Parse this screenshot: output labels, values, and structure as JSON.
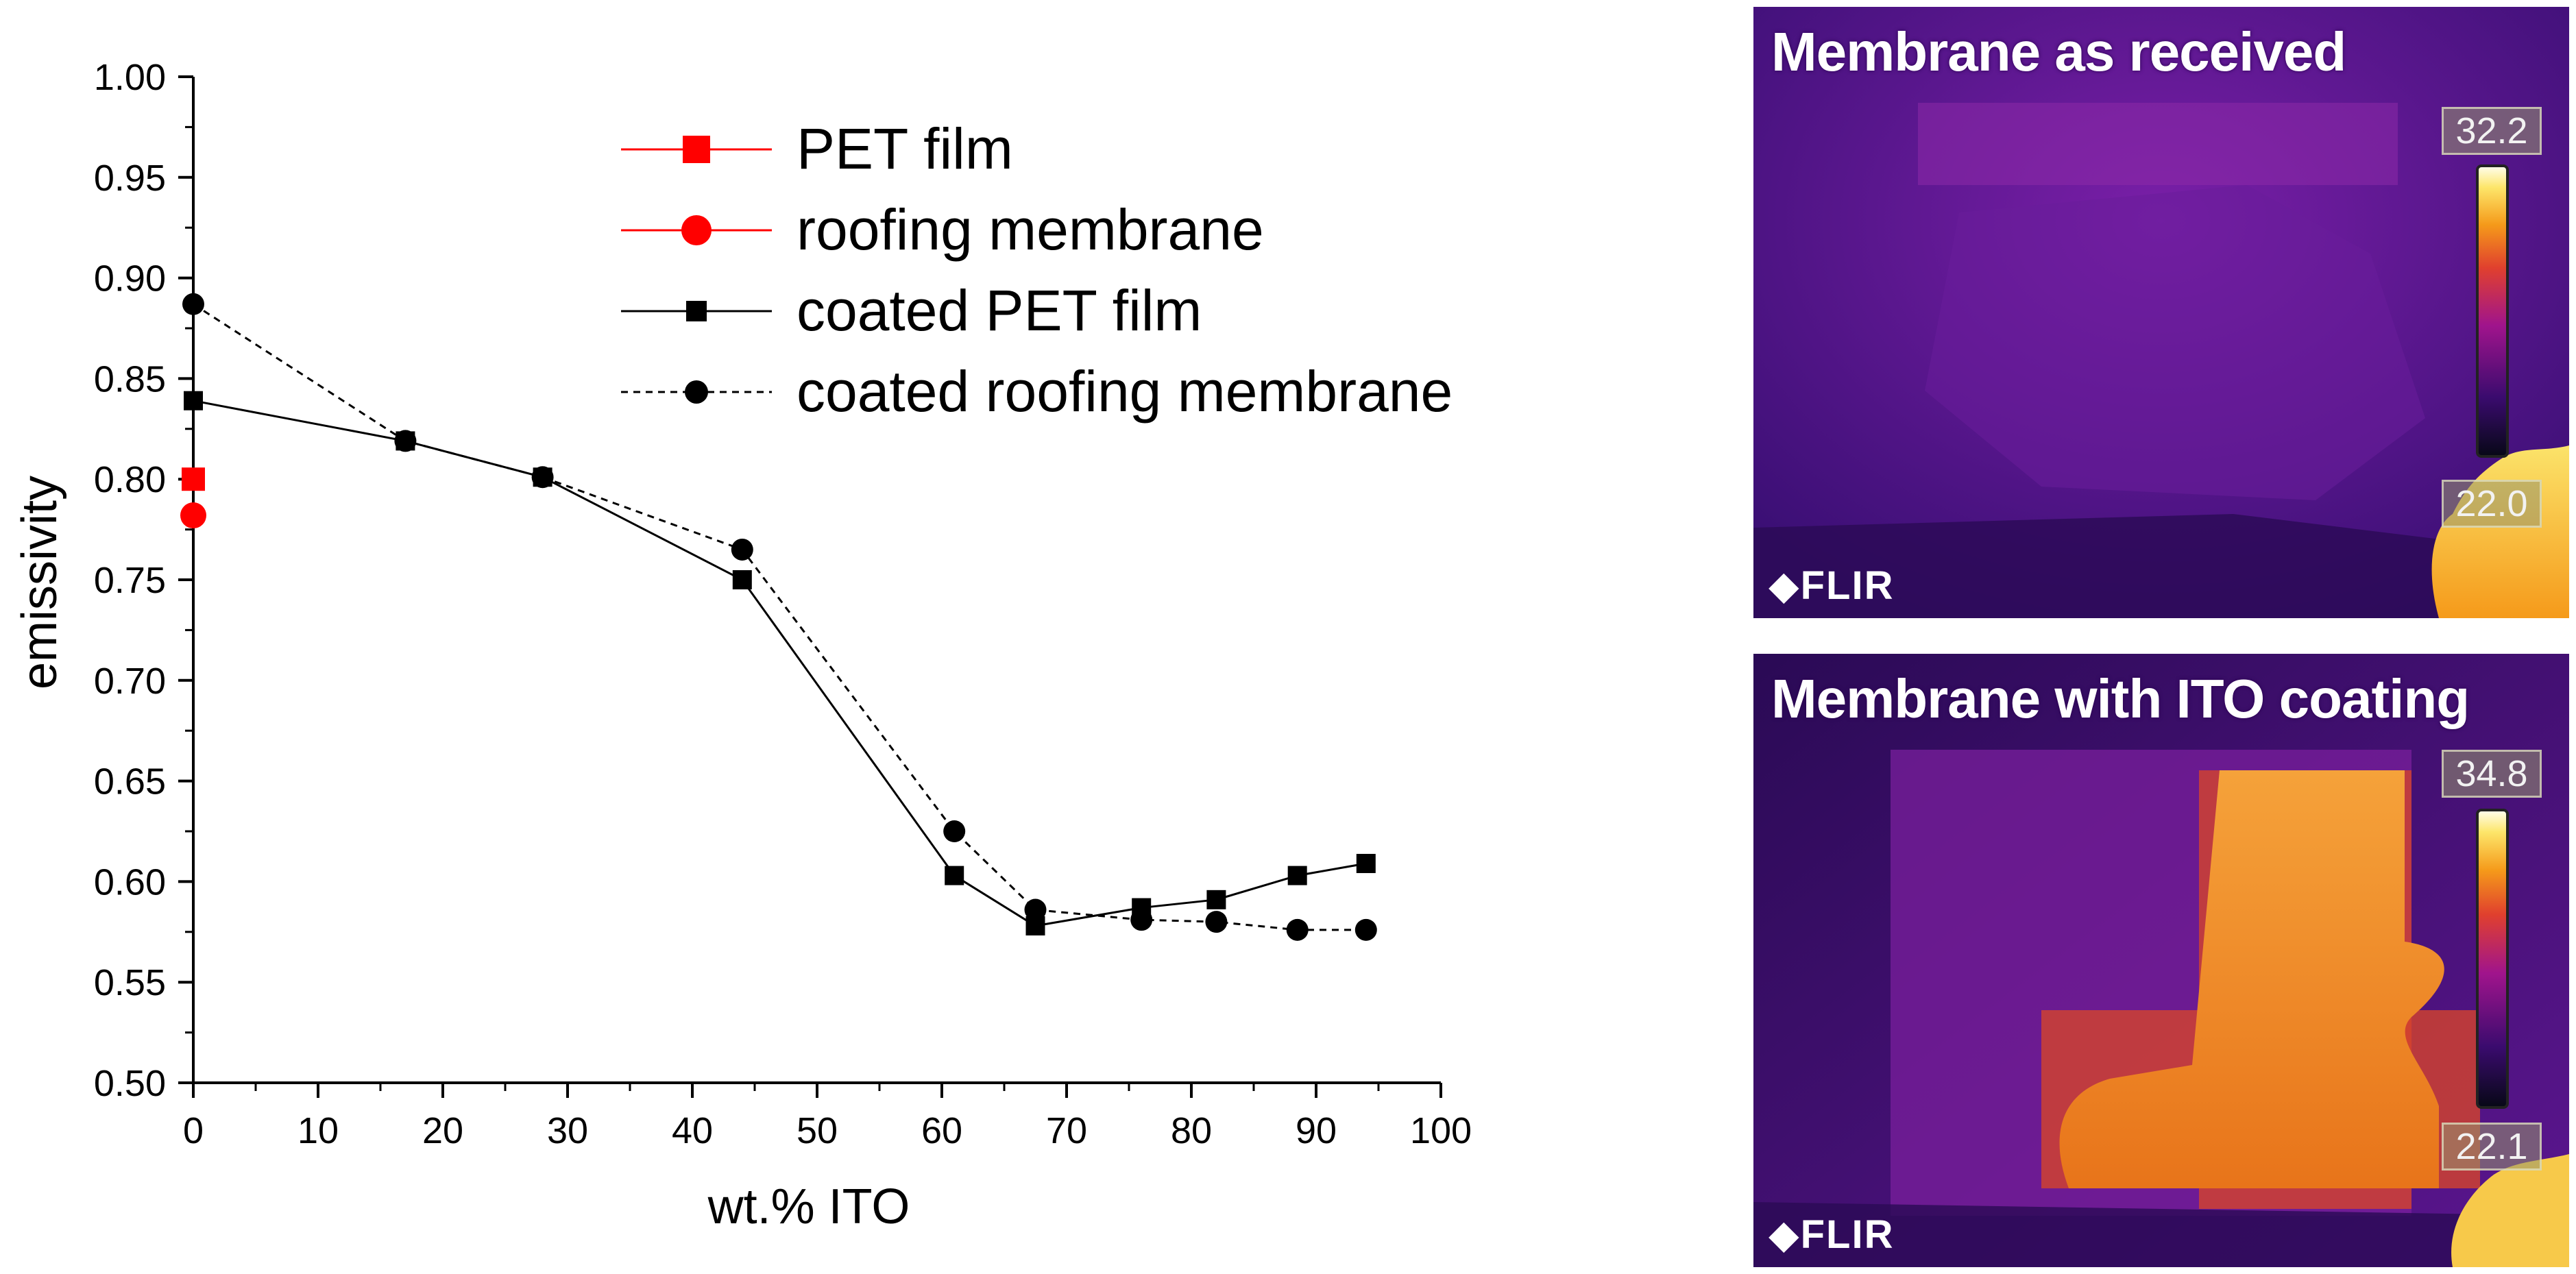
{
  "chart_data": {
    "type": "line",
    "xlabel": "wt.% ITO",
    "ylabel": "emissivity",
    "xlim": [
      0,
      100
    ],
    "ylim": [
      0.5,
      1.0
    ],
    "xticks": [
      0,
      10,
      20,
      30,
      40,
      50,
      60,
      70,
      80,
      90,
      100
    ],
    "yticks": [
      0.5,
      0.55,
      0.6,
      0.65,
      0.7,
      0.75,
      0.8,
      0.85,
      0.9,
      0.95,
      1.0
    ],
    "xtick_labels": [
      "0",
      "10",
      "20",
      "30",
      "40",
      "50",
      "60",
      "70",
      "80",
      "90",
      "100"
    ],
    "ytick_labels": [
      "0.50",
      "0.55",
      "0.60",
      "0.65",
      "0.70",
      "0.75",
      "0.80",
      "0.85",
      "0.90",
      "0.95",
      "1.00"
    ],
    "legend_position": "top-center",
    "series": [
      {
        "name": "PET film",
        "color": "#ff0000",
        "marker": "square",
        "line": "none",
        "x": [
          0
        ],
        "y": [
          0.8
        ]
      },
      {
        "name": "roofing membrane",
        "color": "#ff0000",
        "marker": "circle",
        "line": "none",
        "x": [
          0
        ],
        "y": [
          0.782
        ]
      },
      {
        "name": "coated PET film",
        "color": "#000000",
        "marker": "square",
        "line": "solid",
        "x": [
          0,
          17,
          28,
          44,
          61,
          67.5,
          76,
          82,
          88.5,
          94
        ],
        "y": [
          0.839,
          0.819,
          0.801,
          0.75,
          0.603,
          0.578,
          0.587,
          0.591,
          0.603,
          0.609
        ]
      },
      {
        "name": "coated roofing membrane",
        "color": "#000000",
        "marker": "circle",
        "line": "dashed",
        "x": [
          0,
          17,
          28,
          44,
          61,
          67.5,
          76,
          82,
          88.5,
          94
        ],
        "y": [
          0.887,
          0.819,
          0.801,
          0.765,
          0.625,
          0.586,
          0.581,
          0.58,
          0.576,
          0.576
        ]
      }
    ]
  },
  "thermal_images": [
    {
      "title": "Membrane as received",
      "scale_max": "32.2",
      "scale_min": "22.0",
      "logo": "FLIR"
    },
    {
      "title": "Membrane with ITO coating",
      "scale_max": "34.8",
      "scale_min": "22.1",
      "logo": "FLIR"
    }
  ]
}
